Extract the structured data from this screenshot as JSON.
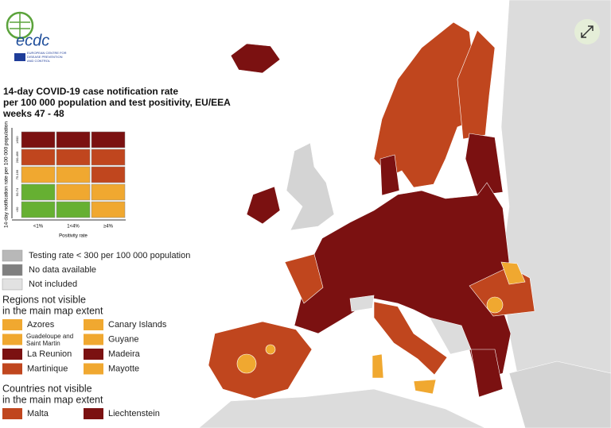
{
  "logo": {
    "name": "ecdc",
    "subtitle": "EUROPEAN CENTRE FOR DISEASE PREVENTION AND CONTROL"
  },
  "title": [
    "14-day COVID-19 case notification rate",
    "per 100 000 population and test positivity, EU/EEA",
    "weeks 47 - 48"
  ],
  "matrix": {
    "y_label": "14-day notification rate per 100 000 population",
    "row_labels": [
      "≥500",
      "200-499",
      "75-199",
      "50-74",
      "<50"
    ],
    "col_labels": [
      "<1%",
      "1<4%",
      "≥4%"
    ],
    "x_label": "Positivity rate",
    "cells": [
      [
        "#7b1111",
        "#7b1111",
        "#7b1111"
      ],
      [
        "#c0461e",
        "#c0461e",
        "#c0461e"
      ],
      [
        "#f0a830",
        "#f0a830",
        "#c0461e"
      ],
      [
        "#66b032",
        "#f0a830",
        "#f0a830"
      ],
      [
        "#66b032",
        "#66b032",
        "#f0a830"
      ]
    ]
  },
  "legend": [
    {
      "label": "Testing rate < 300 per 100 000 population",
      "color": "#b8b8b8"
    },
    {
      "label": "No data available",
      "color": "#7f7f7f"
    },
    {
      "label": "Not included",
      "color": "#e2e2e2"
    }
  ],
  "regions": {
    "heading": [
      "Regions not visible",
      "in the main map extent"
    ],
    "items": [
      {
        "label": "Azores",
        "color": "#f0a830"
      },
      {
        "label": "Canary Islands",
        "color": "#f0a830"
      },
      {
        "label": "Guadeloupe and Saint Martin",
        "color": "#f0a830"
      },
      {
        "label": "Guyane",
        "color": "#f0a830"
      },
      {
        "label": "La Reunion",
        "color": "#7b1111"
      },
      {
        "label": "Madeira",
        "color": "#7b1111"
      },
      {
        "label": "Martinique",
        "color": "#c0461e"
      },
      {
        "label": "Mayotte",
        "color": "#f0a830"
      }
    ]
  },
  "countries": {
    "heading": [
      "Countries not visible",
      "in the main map extent"
    ],
    "items": [
      {
        "label": "Malta",
        "color": "#c0461e"
      },
      {
        "label": "Liechtenstein",
        "color": "#7b1111"
      }
    ]
  }
}
